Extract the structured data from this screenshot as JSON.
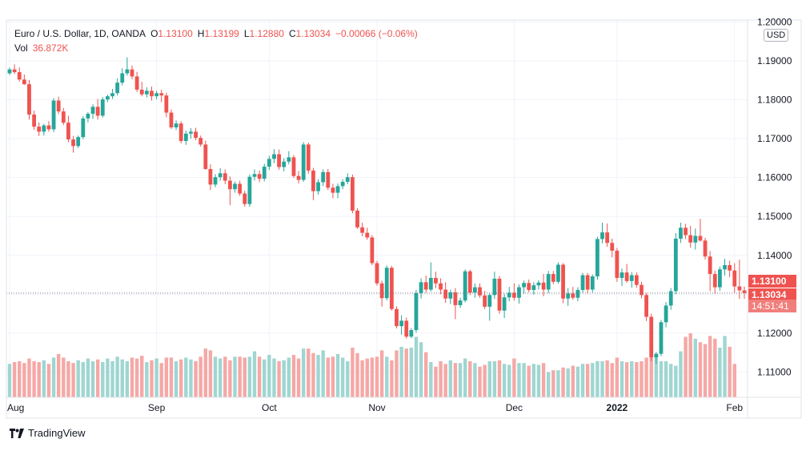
{
  "header": {
    "symbol": "Euro / U.S. Dollar, 1D, OANDA",
    "open_label": "O",
    "open": "1.13100",
    "high_label": "H",
    "high": "1.13199",
    "low_label": "L",
    "low": "1.12880",
    "close_label": "C",
    "close": "1.13034",
    "change": "−0.00066 (−0.06%)",
    "vol_label": "Vol",
    "vol": "36.872K"
  },
  "currency": "USD",
  "brand": "TradingView",
  "price_tags": {
    "open": "1.13100",
    "close": "1.13034",
    "countdown": "14:51:41"
  },
  "colors": {
    "up": "#26a69a",
    "down": "#ef5350",
    "up_vol": "#9fd6d1",
    "down_vol": "#f5a8a6"
  },
  "chart_data": {
    "type": "candlestick",
    "y_axis": {
      "range": [
        1.1035,
        1.2005
      ],
      "ticks": [
        "1.11000",
        "1.12000",
        "1.13000",
        "1.14000",
        "1.15000",
        "1.16000",
        "1.17000",
        "1.18000",
        "1.19000",
        "1.20000"
      ],
      "tick_values": [
        1.11,
        1.12,
        1.13,
        1.14,
        1.15,
        1.16,
        1.17,
        1.18,
        1.19,
        1.2
      ]
    },
    "x_axis": {
      "labels": [
        "Aug",
        "Sep",
        "Oct",
        "Nov",
        "Dec",
        "2022",
        "Feb"
      ],
      "label_index": [
        0,
        30,
        53,
        75,
        103,
        124,
        148
      ]
    },
    "last_price_line": 1.1303,
    "candles": [
      [
        1.1868,
        1.1883,
        1.1864,
        1.1878
      ],
      [
        1.1878,
        1.1891,
        1.1866,
        1.1871
      ],
      [
        1.1871,
        1.1883,
        1.1847,
        1.1852
      ],
      [
        1.1852,
        1.1865,
        1.1838,
        1.184
      ],
      [
        1.184,
        1.1851,
        1.1749,
        1.1762
      ],
      [
        1.1762,
        1.1772,
        1.1723,
        1.1731
      ],
      [
        1.1731,
        1.1742,
        1.1707,
        1.1718
      ],
      [
        1.1718,
        1.1738,
        1.1708,
        1.1734
      ],
      [
        1.1734,
        1.1745,
        1.1718,
        1.1724
      ],
      [
        1.1724,
        1.1804,
        1.1717,
        1.1798
      ],
      [
        1.1798,
        1.1808,
        1.1763,
        1.177
      ],
      [
        1.177,
        1.1779,
        1.1735,
        1.1741
      ],
      [
        1.1741,
        1.1759,
        1.1691,
        1.1698
      ],
      [
        1.1698,
        1.1707,
        1.1664,
        1.1681
      ],
      [
        1.1681,
        1.1708,
        1.1676,
        1.1704
      ],
      [
        1.1704,
        1.1758,
        1.1699,
        1.1752
      ],
      [
        1.1752,
        1.1768,
        1.1742,
        1.1764
      ],
      [
        1.1764,
        1.1788,
        1.1751,
        1.1782
      ],
      [
        1.1782,
        1.1802,
        1.1749,
        1.1759
      ],
      [
        1.1759,
        1.1807,
        1.1754,
        1.1801
      ],
      [
        1.1801,
        1.1813,
        1.1794,
        1.1809
      ],
      [
        1.1809,
        1.1828,
        1.1802,
        1.1817
      ],
      [
        1.1817,
        1.1855,
        1.1811,
        1.1844
      ],
      [
        1.1844,
        1.1881,
        1.1837,
        1.1868
      ],
      [
        1.1868,
        1.1909,
        1.1862,
        1.1878
      ],
      [
        1.1878,
        1.1888,
        1.1853,
        1.186
      ],
      [
        1.186,
        1.1872,
        1.182,
        1.1826
      ],
      [
        1.1826,
        1.1846,
        1.1809,
        1.1814
      ],
      [
        1.1814,
        1.1832,
        1.1806,
        1.1823
      ],
      [
        1.1823,
        1.1834,
        1.1798,
        1.1809
      ],
      [
        1.1809,
        1.1823,
        1.1801,
        1.1817
      ],
      [
        1.1817,
        1.1826,
        1.1794,
        1.1811
      ],
      [
        1.1811,
        1.1818,
        1.1755,
        1.1767
      ],
      [
        1.1767,
        1.1775,
        1.1725,
        1.1729
      ],
      [
        1.1729,
        1.1747,
        1.1722,
        1.1739
      ],
      [
        1.1739,
        1.1745,
        1.1688,
        1.1694
      ],
      [
        1.1694,
        1.1721,
        1.1684,
        1.1713
      ],
      [
        1.1713,
        1.1727,
        1.17,
        1.1718
      ],
      [
        1.1718,
        1.1728,
        1.1696,
        1.1702
      ],
      [
        1.1702,
        1.1708,
        1.168,
        1.1685
      ],
      [
        1.1685,
        1.1695,
        1.162,
        1.1622
      ],
      [
        1.1622,
        1.1634,
        1.1568,
        1.1582
      ],
      [
        1.1582,
        1.1609,
        1.1575,
        1.1601
      ],
      [
        1.1601,
        1.1624,
        1.1592,
        1.1611
      ],
      [
        1.1611,
        1.1621,
        1.1583,
        1.1592
      ],
      [
        1.1592,
        1.1603,
        1.1529,
        1.157
      ],
      [
        1.157,
        1.159,
        1.1561,
        1.1584
      ],
      [
        1.1584,
        1.1592,
        1.1553,
        1.1559
      ],
      [
        1.1559,
        1.1566,
        1.1525,
        1.1532
      ],
      [
        1.1532,
        1.1608,
        1.1525,
        1.1602
      ],
      [
        1.1602,
        1.1621,
        1.1592,
        1.1609
      ],
      [
        1.1609,
        1.1618,
        1.1588,
        1.1597
      ],
      [
        1.1597,
        1.1635,
        1.159,
        1.1628
      ],
      [
        1.1628,
        1.1656,
        1.162,
        1.1648
      ],
      [
        1.1648,
        1.1673,
        1.1637,
        1.166
      ],
      [
        1.166,
        1.1672,
        1.162,
        1.1627
      ],
      [
        1.1627,
        1.165,
        1.1616,
        1.1641
      ],
      [
        1.1641,
        1.1668,
        1.1634,
        1.1652
      ],
      [
        1.1652,
        1.1658,
        1.1599,
        1.1604
      ],
      [
        1.1604,
        1.1617,
        1.1585,
        1.1594
      ],
      [
        1.1594,
        1.1691,
        1.1589,
        1.1685
      ],
      [
        1.1685,
        1.169,
        1.161,
        1.1618
      ],
      [
        1.1618,
        1.1625,
        1.1542,
        1.1565
      ],
      [
        1.1565,
        1.1596,
        1.1556,
        1.1588
      ],
      [
        1.1588,
        1.1621,
        1.1578,
        1.1614
      ],
      [
        1.1614,
        1.1622,
        1.1568,
        1.1574
      ],
      [
        1.1574,
        1.1584,
        1.1547,
        1.1561
      ],
      [
        1.1561,
        1.1585,
        1.1547,
        1.1578
      ],
      [
        1.1578,
        1.1596,
        1.157,
        1.1589
      ],
      [
        1.1589,
        1.1611,
        1.1583,
        1.1601
      ],
      [
        1.1601,
        1.1608,
        1.1508,
        1.1515
      ],
      [
        1.1515,
        1.1521,
        1.1468,
        1.1472
      ],
      [
        1.1472,
        1.1484,
        1.1449,
        1.1458
      ],
      [
        1.1458,
        1.1471,
        1.144,
        1.1446
      ],
      [
        1.1446,
        1.1452,
        1.1375,
        1.138
      ],
      [
        1.138,
        1.1386,
        1.1322,
        1.1328
      ],
      [
        1.1328,
        1.1335,
        1.1268,
        1.129
      ],
      [
        1.129,
        1.1374,
        1.1284,
        1.1368
      ],
      [
        1.1368,
        1.1373,
        1.1258,
        1.1262
      ],
      [
        1.1262,
        1.1269,
        1.1212,
        1.1218
      ],
      [
        1.1218,
        1.1246,
        1.1196,
        1.1232
      ],
      [
        1.1232,
        1.124,
        1.1186,
        1.1191
      ],
      [
        1.1191,
        1.1213,
        1.1187,
        1.1208
      ],
      [
        1.1208,
        1.1311,
        1.1201,
        1.1303
      ],
      [
        1.1303,
        1.1341,
        1.1289,
        1.1331
      ],
      [
        1.1331,
        1.1348,
        1.1304,
        1.1312
      ],
      [
        1.1312,
        1.1382,
        1.1307,
        1.1342
      ],
      [
        1.1342,
        1.1358,
        1.1316,
        1.1328
      ],
      [
        1.1328,
        1.1341,
        1.13,
        1.1312
      ],
      [
        1.1312,
        1.1331,
        1.1278,
        1.1289
      ],
      [
        1.1289,
        1.1312,
        1.1275,
        1.1305
      ],
      [
        1.1305,
        1.1316,
        1.1236,
        1.1272
      ],
      [
        1.1272,
        1.1291,
        1.1265,
        1.1284
      ],
      [
        1.1284,
        1.1364,
        1.1279,
        1.1359
      ],
      [
        1.1359,
        1.1363,
        1.1298,
        1.1304
      ],
      [
        1.1304,
        1.1328,
        1.1291,
        1.1318
      ],
      [
        1.1318,
        1.1328,
        1.1291,
        1.1297
      ],
      [
        1.1297,
        1.1309,
        1.1262,
        1.1268
      ],
      [
        1.1268,
        1.1302,
        1.1232,
        1.1298
      ],
      [
        1.1298,
        1.1358,
        1.1288,
        1.134
      ],
      [
        1.134,
        1.1347,
        1.125,
        1.1258
      ],
      [
        1.1258,
        1.1301,
        1.1239,
        1.1292
      ],
      [
        1.1292,
        1.1319,
        1.1282,
        1.1304
      ],
      [
        1.1304,
        1.1328,
        1.1284,
        1.1291
      ],
      [
        1.1291,
        1.1325,
        1.1276,
        1.1318
      ],
      [
        1.1318,
        1.1335,
        1.1302,
        1.1329
      ],
      [
        1.1329,
        1.1338,
        1.1305,
        1.1311
      ],
      [
        1.1311,
        1.1331,
        1.1299,
        1.1323
      ],
      [
        1.1323,
        1.1336,
        1.1312,
        1.133
      ],
      [
        1.133,
        1.1352,
        1.1295,
        1.1312
      ],
      [
        1.1312,
        1.136,
        1.1303,
        1.1352
      ],
      [
        1.1352,
        1.136,
        1.1326,
        1.1332
      ],
      [
        1.1332,
        1.1382,
        1.1327,
        1.1376
      ],
      [
        1.1376,
        1.138,
        1.1277,
        1.1289
      ],
      [
        1.1289,
        1.1316,
        1.127,
        1.1302
      ],
      [
        1.1302,
        1.1319,
        1.1286,
        1.1291
      ],
      [
        1.1291,
        1.1318,
        1.1282,
        1.1311
      ],
      [
        1.1311,
        1.1355,
        1.1304,
        1.1349
      ],
      [
        1.1349,
        1.1355,
        1.1302,
        1.1312
      ],
      [
        1.1312,
        1.1351,
        1.1305,
        1.1346
      ],
      [
        1.1346,
        1.1448,
        1.1337,
        1.1442
      ],
      [
        1.1442,
        1.1484,
        1.1431,
        1.1459
      ],
      [
        1.1459,
        1.1482,
        1.1422,
        1.1432
      ],
      [
        1.1432,
        1.1443,
        1.1395,
        1.1412
      ],
      [
        1.1412,
        1.1419,
        1.1332,
        1.1342
      ],
      [
        1.1342,
        1.1366,
        1.1321,
        1.1356
      ],
      [
        1.1356,
        1.1378,
        1.1329,
        1.1334
      ],
      [
        1.1334,
        1.1357,
        1.1317,
        1.1349
      ],
      [
        1.1349,
        1.1356,
        1.1317,
        1.1324
      ],
      [
        1.1324,
        1.1332,
        1.129,
        1.1298
      ],
      [
        1.1298,
        1.1303,
        1.1231,
        1.1242
      ],
      [
        1.1242,
        1.125,
        1.1128,
        1.1138
      ],
      [
        1.1138,
        1.1152,
        1.1121,
        1.1147
      ],
      [
        1.1147,
        1.1234,
        1.1141,
        1.1228
      ],
      [
        1.1228,
        1.128,
        1.1215,
        1.1271
      ],
      [
        1.1271,
        1.1316,
        1.126,
        1.1308
      ],
      [
        1.1308,
        1.1457,
        1.13,
        1.1443
      ],
      [
        1.1443,
        1.1484,
        1.1432,
        1.1471
      ],
      [
        1.1471,
        1.1481,
        1.1442,
        1.1452
      ],
      [
        1.1452,
        1.1476,
        1.142,
        1.1433
      ],
      [
        1.1433,
        1.1469,
        1.1415,
        1.145
      ],
      [
        1.145,
        1.1494,
        1.1435,
        1.1438
      ],
      [
        1.1438,
        1.1445,
        1.1389,
        1.1397
      ],
      [
        1.1397,
        1.1411,
        1.1308,
        1.1352
      ],
      [
        1.1352,
        1.1361,
        1.1301,
        1.1318
      ],
      [
        1.1318,
        1.1371,
        1.1309,
        1.1364
      ],
      [
        1.1364,
        1.1391,
        1.1348,
        1.1375
      ],
      [
        1.1375,
        1.1386,
        1.1344,
        1.1361
      ],
      [
        1.1361,
        1.138,
        1.1303,
        1.132
      ],
      [
        1.132,
        1.1389,
        1.1288,
        1.131
      ],
      [
        1.131,
        1.132,
        1.1288,
        1.1303
      ]
    ],
    "volumes_k": [
      37,
      39,
      40,
      38,
      43,
      40,
      39,
      41,
      37,
      44,
      48,
      44,
      40,
      38,
      41,
      39,
      43,
      40,
      42,
      39,
      43,
      40,
      45,
      42,
      40,
      44,
      43,
      46,
      39,
      41,
      43,
      38,
      44,
      44,
      40,
      42,
      44,
      42,
      40,
      45,
      54,
      52,
      45,
      43,
      45,
      41,
      45,
      45,
      44,
      45,
      51,
      45,
      42,
      47,
      43,
      40,
      41,
      44,
      47,
      43,
      54,
      54,
      49,
      47,
      52,
      44,
      45,
      48,
      44,
      40,
      55,
      49,
      41,
      43,
      44,
      45,
      52,
      45,
      41,
      52,
      56,
      54,
      55,
      67,
      61,
      50,
      39,
      34,
      40,
      37,
      41,
      38,
      38,
      43,
      40,
      38,
      34,
      36,
      40,
      40,
      41,
      37,
      36,
      43,
      38,
      38,
      35,
      37,
      36,
      38,
      28,
      30,
      30,
      33,
      32,
      35,
      34,
      37,
      37,
      38,
      40,
      40,
      41,
      38,
      44,
      40,
      39,
      40,
      39,
      40,
      44,
      51,
      45,
      40,
      40,
      37,
      35,
      51,
      67,
      71,
      65,
      61,
      59,
      68,
      65,
      55,
      68,
      56,
      37
    ]
  }
}
